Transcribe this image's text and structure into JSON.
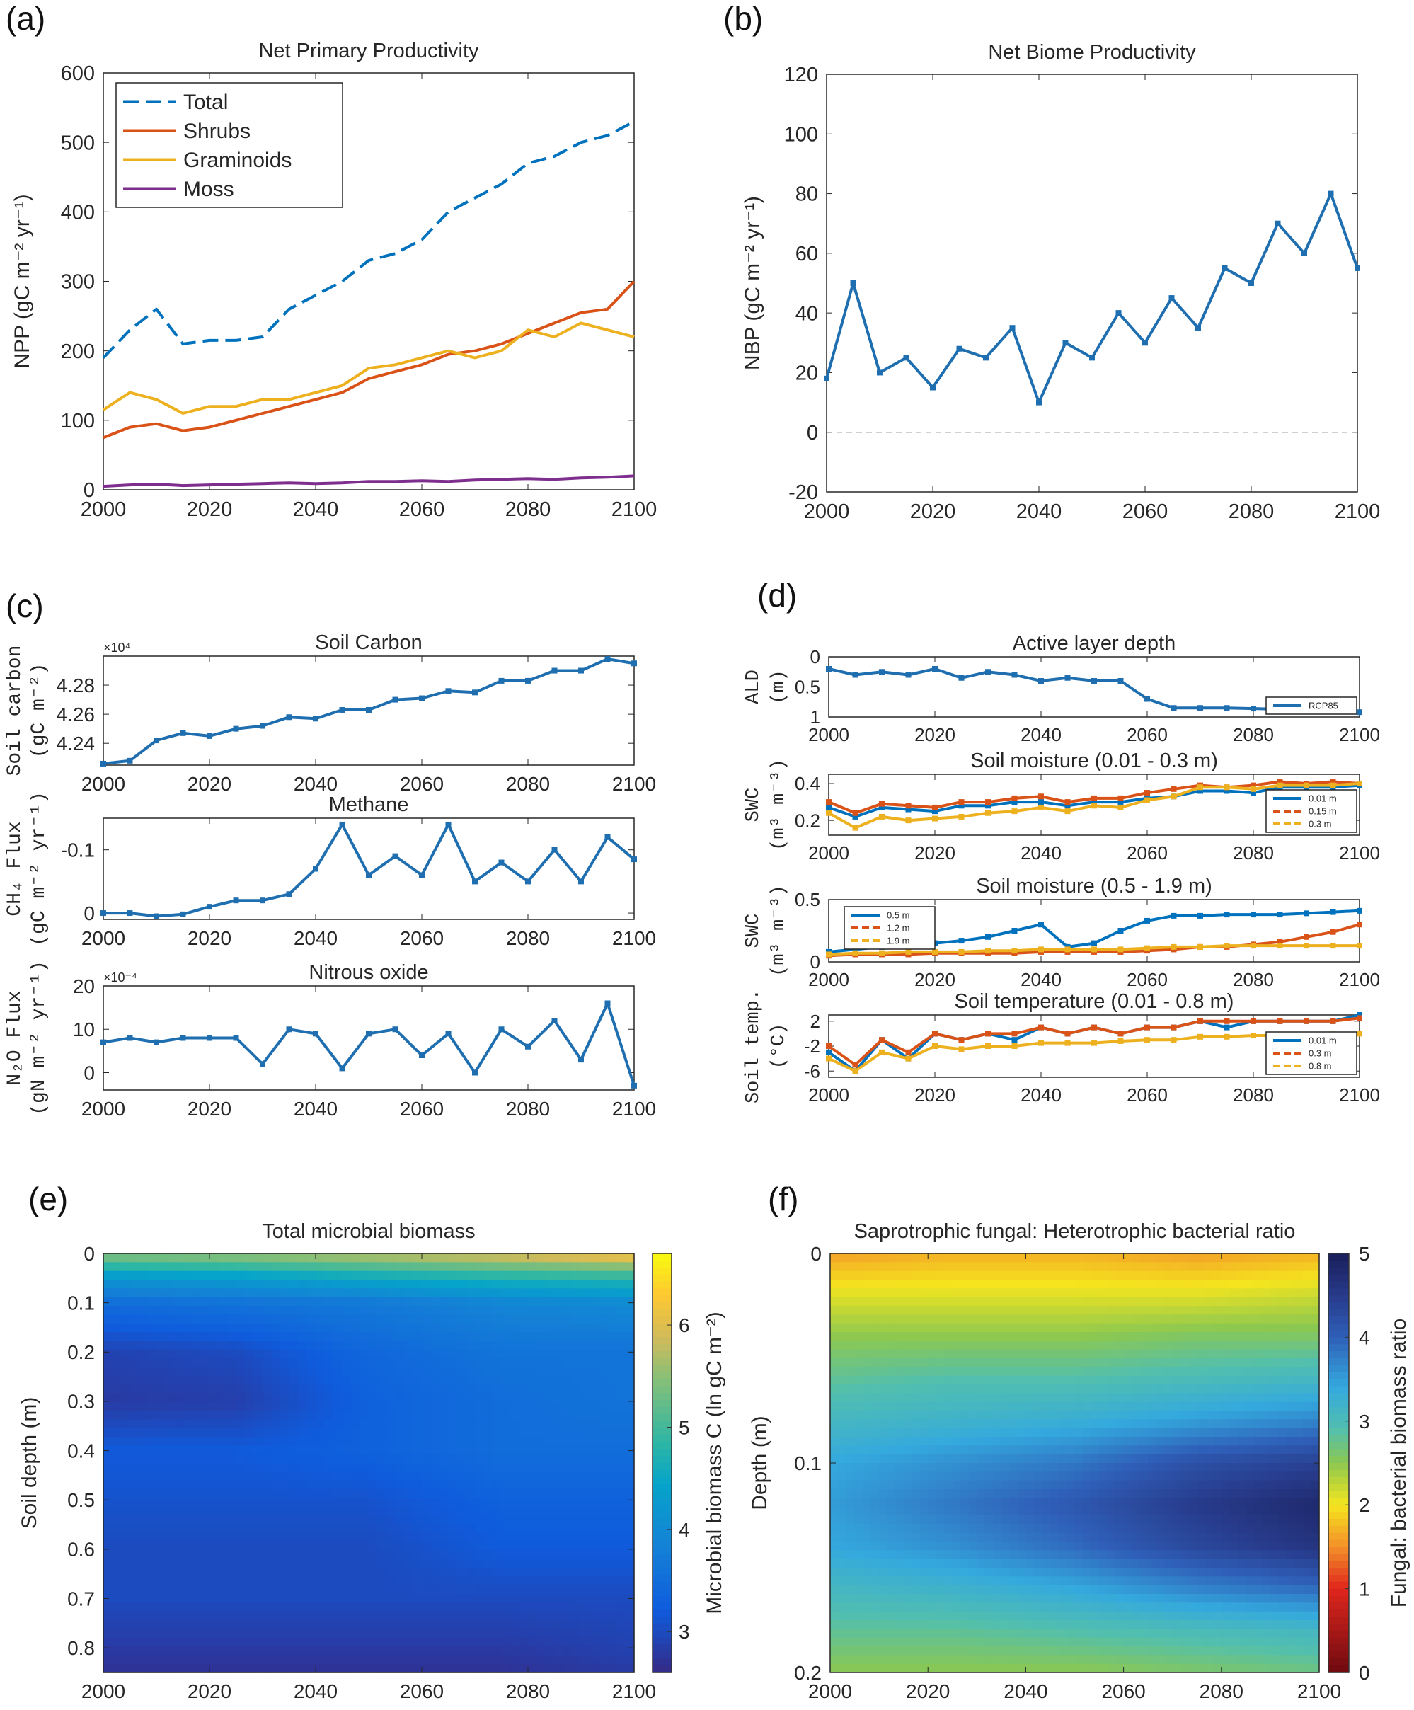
{
  "panels": {
    "a": "(a)",
    "b": "(b)",
    "c": "(c)",
    "d": "(d)",
    "e": "(e)",
    "f": "(f)"
  },
  "chart_data": [
    {
      "id": "a",
      "type": "line",
      "title": "Net Primary Productivity",
      "xlabel": "",
      "ylabel": "NPP (gC m⁻² yr⁻¹)",
      "x": [
        2000,
        2005,
        2010,
        2015,
        2020,
        2025,
        2030,
        2035,
        2040,
        2045,
        2050,
        2055,
        2060,
        2065,
        2070,
        2075,
        2080,
        2085,
        2090,
        2095,
        2100
      ],
      "xlim": [
        2000,
        2100
      ],
      "ylim": [
        0,
        600
      ],
      "xticks": [
        2000,
        2020,
        2040,
        2060,
        2080,
        2100
      ],
      "yticks": [
        0,
        100,
        200,
        300,
        400,
        500,
        600
      ],
      "legend": "top-left",
      "series": [
        {
          "name": "Total",
          "color": "#0072bd",
          "dashed": true,
          "values": [
            190,
            230,
            260,
            210,
            215,
            215,
            220,
            260,
            280,
            300,
            330,
            340,
            360,
            400,
            420,
            440,
            470,
            480,
            500,
            510,
            530
          ]
        },
        {
          "name": "Shrubs",
          "color": "#d95319",
          "values": [
            75,
            90,
            95,
            85,
            90,
            100,
            110,
            120,
            130,
            140,
            160,
            170,
            180,
            195,
            200,
            210,
            225,
            240,
            255,
            260,
            300
          ]
        },
        {
          "name": "Graminoids",
          "color": "#edb120",
          "values": [
            115,
            140,
            130,
            110,
            120,
            120,
            130,
            130,
            140,
            150,
            175,
            180,
            190,
            200,
            190,
            200,
            230,
            220,
            240,
            230,
            220
          ]
        },
        {
          "name": "Moss",
          "color": "#7e2f8e",
          "values": [
            5,
            7,
            8,
            6,
            7,
            8,
            9,
            10,
            9,
            10,
            12,
            12,
            13,
            12,
            14,
            15,
            16,
            15,
            17,
            18,
            20
          ]
        }
      ]
    },
    {
      "id": "b",
      "type": "line",
      "title": "Net Biome Productivity",
      "xlabel": "",
      "ylabel": "NBP (gC m⁻² yr⁻¹)",
      "x": [
        2000,
        2005,
        2010,
        2015,
        2020,
        2025,
        2030,
        2035,
        2040,
        2045,
        2050,
        2055,
        2060,
        2065,
        2070,
        2075,
        2080,
        2085,
        2090,
        2095,
        2100
      ],
      "xlim": [
        2000,
        2100
      ],
      "ylim": [
        -20,
        120
      ],
      "xticks": [
        2000,
        2020,
        2040,
        2060,
        2080,
        2100
      ],
      "yticks": [
        -20,
        0,
        20,
        40,
        60,
        80,
        100,
        120
      ],
      "zero_line": true,
      "markers": true,
      "series": [
        {
          "color": "#1f6fb0",
          "values": [
            18,
            50,
            20,
            25,
            15,
            28,
            25,
            35,
            10,
            30,
            25,
            40,
            30,
            45,
            35,
            55,
            50,
            70,
            60,
            80,
            55
          ]
        }
      ]
    },
    {
      "id": "c1",
      "type": "line",
      "title": "Soil Carbon",
      "ylabel": "Soil carbon (gC m⁻²)",
      "exponent": "×10⁴",
      "x": [
        2000,
        2005,
        2010,
        2015,
        2020,
        2025,
        2030,
        2035,
        2040,
        2045,
        2050,
        2055,
        2060,
        2065,
        2070,
        2075,
        2080,
        2085,
        2090,
        2095,
        2100
      ],
      "xlim": [
        2000,
        2100
      ],
      "ylim": [
        4.225,
        4.3
      ],
      "xticks": [
        2000,
        2020,
        2040,
        2060,
        2080,
        2100
      ],
      "yticks": [
        4.24,
        4.26,
        4.28
      ],
      "markers": true,
      "series": [
        {
          "color": "#1f6fb0",
          "values": [
            4.226,
            4.228,
            4.242,
            4.247,
            4.245,
            4.25,
            4.252,
            4.258,
            4.257,
            4.263,
            4.263,
            4.27,
            4.271,
            4.276,
            4.275,
            4.283,
            4.283,
            4.29,
            4.29,
            4.298,
            4.295
          ]
        }
      ]
    },
    {
      "id": "c2",
      "type": "line",
      "title": "Methane",
      "ylabel": "CH₄ Flux (gC m⁻² yr⁻¹)",
      "reversed": true,
      "x": [
        2000,
        2005,
        2010,
        2015,
        2020,
        2025,
        2030,
        2035,
        2040,
        2045,
        2050,
        2055,
        2060,
        2065,
        2070,
        2075,
        2080,
        2085,
        2090,
        2095,
        2100
      ],
      "xlim": [
        2000,
        2100
      ],
      "ylim": [
        -0.15,
        0.01
      ],
      "xticks": [
        2000,
        2020,
        2040,
        2060,
        2080,
        2100
      ],
      "yticks": [
        -0.1,
        0
      ],
      "markers": true,
      "series": [
        {
          "color": "#1f6fb0",
          "values": [
            0,
            0,
            0.005,
            0.002,
            -0.01,
            -0.02,
            -0.02,
            -0.03,
            -0.07,
            -0.14,
            -0.06,
            -0.09,
            -0.06,
            -0.14,
            -0.05,
            -0.08,
            -0.05,
            -0.1,
            -0.05,
            -0.12,
            -0.085
          ]
        }
      ]
    },
    {
      "id": "c3",
      "type": "line",
      "title": "Nitrous oxide",
      "ylabel": "N₂O Flux (gN m⁻² yr⁻¹)",
      "exponent": "×10⁻⁴",
      "x": [
        2000,
        2005,
        2010,
        2015,
        2020,
        2025,
        2030,
        2035,
        2040,
        2045,
        2050,
        2055,
        2060,
        2065,
        2070,
        2075,
        2080,
        2085,
        2090,
        2095,
        2100
      ],
      "xlim": [
        2000,
        2100
      ],
      "ylim": [
        -4,
        20
      ],
      "xticks": [
        2000,
        2020,
        2040,
        2060,
        2080,
        2100
      ],
      "yticks": [
        0,
        10,
        20
      ],
      "markers": true,
      "series": [
        {
          "color": "#1f6fb0",
          "values": [
            7,
            8,
            7,
            8,
            8,
            8,
            2,
            10,
            9,
            1,
            9,
            10,
            4,
            9,
            0,
            10,
            6,
            12,
            3,
            16,
            -3
          ]
        }
      ]
    },
    {
      "id": "d1",
      "type": "line",
      "title": "Active layer depth",
      "ylabel": "ALD (m)",
      "reversed": true,
      "x": [
        2000,
        2005,
        2010,
        2015,
        2020,
        2025,
        2030,
        2035,
        2040,
        2045,
        2050,
        2055,
        2060,
        2065,
        2070,
        2075,
        2080,
        2085,
        2090,
        2095,
        2100
      ],
      "xlim": [
        2000,
        2100
      ],
      "ylim": [
        0,
        1
      ],
      "xticks": [
        2000,
        2020,
        2040,
        2060,
        2080,
        2100
      ],
      "yticks": [
        0,
        0.5,
        1
      ],
      "markers": true,
      "legend": "bottom-right",
      "series": [
        {
          "name": "RCP85",
          "color": "#1f6fb0",
          "values": [
            0.2,
            0.3,
            0.25,
            0.3,
            0.2,
            0.35,
            0.25,
            0.3,
            0.4,
            0.35,
            0.4,
            0.4,
            0.7,
            0.85,
            0.85,
            0.85,
            0.86,
            0.87,
            0.88,
            0.88,
            0.92
          ]
        }
      ]
    },
    {
      "id": "d2",
      "type": "line",
      "title": "Soil moisture (0.01 - 0.3 m)",
      "ylabel": "SWC (m³ m⁻³)",
      "x": [
        2000,
        2005,
        2010,
        2015,
        2020,
        2025,
        2030,
        2035,
        2040,
        2045,
        2050,
        2055,
        2060,
        2065,
        2070,
        2075,
        2080,
        2085,
        2090,
        2095,
        2100
      ],
      "xlim": [
        2000,
        2100
      ],
      "ylim": [
        0.12,
        0.45
      ],
      "xticks": [
        2000,
        2020,
        2040,
        2060,
        2080,
        2100
      ],
      "yticks": [
        0.2,
        0.4
      ],
      "markers": true,
      "legend": "right",
      "series": [
        {
          "name": "0.01 m",
          "color": "#0072bd",
          "values": [
            0.27,
            0.22,
            0.27,
            0.26,
            0.25,
            0.28,
            0.28,
            0.3,
            0.3,
            0.28,
            0.3,
            0.3,
            0.32,
            0.33,
            0.36,
            0.36,
            0.35,
            0.38,
            0.38,
            0.38,
            0.39
          ]
        },
        {
          "name": "0.15 m",
          "color": "#d95319",
          "dashed": true,
          "values": [
            0.3,
            0.24,
            0.29,
            0.28,
            0.27,
            0.3,
            0.3,
            0.32,
            0.33,
            0.3,
            0.32,
            0.32,
            0.35,
            0.37,
            0.39,
            0.38,
            0.39,
            0.41,
            0.4,
            0.41,
            0.4
          ]
        },
        {
          "name": "0.3 m",
          "color": "#edb120",
          "dashed": true,
          "values": [
            0.24,
            0.16,
            0.22,
            0.2,
            0.21,
            0.22,
            0.24,
            0.25,
            0.27,
            0.25,
            0.28,
            0.27,
            0.31,
            0.33,
            0.38,
            0.38,
            0.37,
            0.39,
            0.39,
            0.39,
            0.4
          ]
        }
      ]
    },
    {
      "id": "d3",
      "type": "line",
      "title": "Soil moisture (0.5 - 1.9 m)",
      "ylabel": "SWC (m³ m⁻³)",
      "x": [
        2000,
        2005,
        2010,
        2015,
        2020,
        2025,
        2030,
        2035,
        2040,
        2045,
        2050,
        2055,
        2060,
        2065,
        2070,
        2075,
        2080,
        2085,
        2090,
        2095,
        2100
      ],
      "xlim": [
        2000,
        2100
      ],
      "ylim": [
        0,
        0.5
      ],
      "xticks": [
        2000,
        2020,
        2040,
        2060,
        2080,
        2100
      ],
      "yticks": [
        0,
        0.5
      ],
      "markers": true,
      "legend": "top-left",
      "series": [
        {
          "name": "0.5 m",
          "color": "#0072bd",
          "values": [
            0.08,
            0.1,
            0.12,
            0.15,
            0.15,
            0.17,
            0.2,
            0.25,
            0.3,
            0.12,
            0.15,
            0.25,
            0.33,
            0.37,
            0.37,
            0.38,
            0.38,
            0.38,
            0.39,
            0.4,
            0.41
          ]
        },
        {
          "name": "1.2 m",
          "color": "#d95319",
          "dashed": true,
          "values": [
            0.05,
            0.06,
            0.06,
            0.06,
            0.07,
            0.07,
            0.07,
            0.07,
            0.08,
            0.08,
            0.08,
            0.08,
            0.09,
            0.1,
            0.12,
            0.12,
            0.14,
            0.16,
            0.2,
            0.24,
            0.3
          ]
        },
        {
          "name": "1.9 m",
          "color": "#edb120",
          "dashed": true,
          "values": [
            0.06,
            0.07,
            0.07,
            0.08,
            0.08,
            0.08,
            0.09,
            0.09,
            0.1,
            0.1,
            0.1,
            0.1,
            0.11,
            0.12,
            0.12,
            0.13,
            0.13,
            0.13,
            0.13,
            0.13,
            0.13
          ]
        }
      ]
    },
    {
      "id": "d4",
      "type": "line",
      "title": "Soil temperature (0.01 - 0.8 m)",
      "ylabel": "Soil temp. (°C)",
      "x": [
        2000,
        2005,
        2010,
        2015,
        2020,
        2025,
        2030,
        2035,
        2040,
        2045,
        2050,
        2055,
        2060,
        2065,
        2070,
        2075,
        2080,
        2085,
        2090,
        2095,
        2100
      ],
      "xlim": [
        2000,
        2100
      ],
      "ylim": [
        -7,
        3
      ],
      "xticks": [
        2000,
        2020,
        2040,
        2060,
        2080,
        2100
      ],
      "yticks": [
        -6,
        -2,
        2
      ],
      "markers": true,
      "legend": "right",
      "series": [
        {
          "name": "0.01 m",
          "color": "#0072bd",
          "values": [
            -3,
            -6,
            -1,
            -4,
            0,
            -1,
            0,
            -1,
            1,
            0,
            1,
            0,
            1,
            1,
            2,
            1,
            2,
            2,
            2,
            2,
            3
          ]
        },
        {
          "name": "0.3 m",
          "color": "#d95319",
          "dashed": true,
          "values": [
            -2,
            -5,
            -1,
            -3,
            0,
            -1,
            0,
            0,
            1,
            0,
            1,
            0,
            1,
            1,
            2,
            2,
            2,
            2,
            2,
            2,
            2.5
          ]
        },
        {
          "name": "0.8 m",
          "color": "#edb120",
          "dashed": true,
          "values": [
            -4,
            -6,
            -3,
            -4,
            -2,
            -2.5,
            -2,
            -2,
            -1.5,
            -1.5,
            -1.5,
            -1.2,
            -1,
            -1,
            -0.5,
            -0.5,
            -0.3,
            -0.3,
            -0.2,
            -0.1,
            0
          ]
        }
      ]
    },
    {
      "id": "e",
      "type": "heatmap",
      "title": "Total microbial biomass",
      "xlabel": "",
      "ylabel": "Soil depth (m)",
      "colorbar_label": "Microbial biomass C (ln gC m⁻²)",
      "x": [
        2000,
        2025,
        2050,
        2075,
        2100
      ],
      "y": [
        0,
        0.05,
        0.1,
        0.2,
        0.3,
        0.4,
        0.5,
        0.6,
        0.7,
        0.8,
        0.85
      ],
      "z": [
        [
          5.5,
          5.6,
          5.8,
          6.0,
          6.3
        ],
        [
          4.2,
          4.3,
          4.5,
          4.7,
          4.8
        ],
        [
          3.5,
          3.6,
          3.7,
          3.9,
          4.0
        ],
        [
          2.9,
          3.0,
          3.4,
          3.6,
          3.6
        ],
        [
          2.8,
          2.85,
          3.3,
          3.5,
          3.6
        ],
        [
          3.2,
          3.2,
          3.3,
          3.5,
          3.5
        ],
        [
          3.1,
          3.1,
          3.1,
          3.3,
          3.3
        ],
        [
          3.0,
          3.0,
          3.0,
          3.2,
          3.2
        ],
        [
          3.0,
          3.0,
          3.0,
          3.0,
          3.0
        ],
        [
          2.8,
          2.8,
          2.8,
          2.8,
          2.9
        ],
        [
          2.7,
          2.7,
          2.7,
          2.7,
          2.8
        ]
      ],
      "xlim": [
        2000,
        2100
      ],
      "ylim": [
        0,
        0.85
      ],
      "xticks": [
        2000,
        2020,
        2040,
        2060,
        2080,
        2100
      ],
      "yticks": [
        0,
        0.1,
        0.2,
        0.3,
        0.4,
        0.5,
        0.6,
        0.7,
        0.8
      ],
      "clim": [
        2.6,
        6.7
      ],
      "cticks": [
        3,
        4,
        5,
        6
      ],
      "colormap": "parula"
    },
    {
      "id": "f",
      "type": "heatmap",
      "title": "Saprotrophic fungal: Heterotrophic bacterial ratio",
      "xlabel": "",
      "ylabel": "Depth (m)",
      "colorbar_label": "Fungal: bacterial biomass ratio",
      "x": [
        2000,
        2025,
        2050,
        2075,
        2100
      ],
      "y": [
        0,
        0.02,
        0.04,
        0.06,
        0.08,
        0.1,
        0.12,
        0.14,
        0.16,
        0.18,
        0.2
      ],
      "z": [
        [
          1.6,
          1.7,
          1.7,
          1.6,
          1.7
        ],
        [
          2.1,
          2.1,
          2.1,
          2.1,
          2.2
        ],
        [
          2.5,
          2.5,
          2.5,
          2.6,
          2.6
        ],
        [
          2.8,
          2.9,
          2.9,
          3.0,
          3.1
        ],
        [
          3.1,
          3.2,
          3.3,
          3.5,
          3.7
        ],
        [
          3.4,
          3.6,
          3.8,
          4.2,
          4.4
        ],
        [
          3.5,
          3.8,
          4.1,
          4.5,
          4.8
        ],
        [
          3.4,
          3.6,
          3.9,
          4.3,
          4.6
        ],
        [
          3.1,
          3.2,
          3.4,
          3.7,
          3.9
        ],
        [
          2.8,
          2.8,
          2.9,
          3.0,
          3.1
        ],
        [
          2.5,
          2.5,
          2.5,
          2.6,
          2.7
        ]
      ],
      "xlim": [
        2000,
        2100
      ],
      "ylim": [
        0,
        0.2
      ],
      "xticks": [
        2000,
        2020,
        2040,
        2060,
        2080,
        2100
      ],
      "yticks": [
        0,
        0.1,
        0.2
      ],
      "clim": [
        0,
        5
      ],
      "cticks": [
        0,
        1,
        2,
        3,
        4,
        5
      ],
      "colormap": "red-yellow-blue"
    }
  ]
}
